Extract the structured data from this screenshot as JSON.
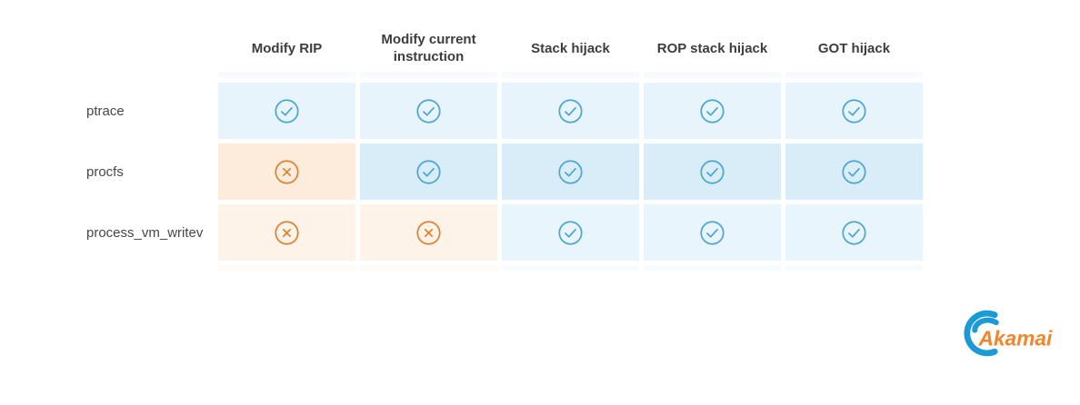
{
  "figure": {
    "columns": [
      "Modify RIP",
      "Modify current instruction",
      "Stack hijack",
      "ROP stack hijack",
      "GOT hijack"
    ],
    "rows": [
      {
        "label": "ptrace",
        "cells": [
          "check",
          "check",
          "check",
          "check",
          "check"
        ]
      },
      {
        "label": "procfs",
        "cells": [
          "cross",
          "check",
          "check",
          "check",
          "check"
        ]
      },
      {
        "label": "process_vm_writev",
        "cells": [
          "cross",
          "cross",
          "check",
          "check",
          "check"
        ]
      }
    ]
  },
  "chart_data": {
    "type": "table",
    "title": "",
    "columns": [
      "Modify RIP",
      "Modify current instruction",
      "Stack hijack",
      "ROP stack hijack",
      "GOT hijack"
    ],
    "rows": [
      {
        "label": "ptrace",
        "values": [
          true,
          true,
          true,
          true,
          true
        ]
      },
      {
        "label": "procfs",
        "values": [
          false,
          true,
          true,
          true,
          true
        ]
      },
      {
        "label": "process_vm_writev",
        "values": [
          false,
          false,
          true,
          true,
          true
        ]
      }
    ],
    "cell_icon_true": "check-circle",
    "cell_icon_false": "x-circle",
    "legend_position": "none",
    "grid": false
  },
  "colors": {
    "check_icon": "#4BA7D1",
    "cross_icon": "#E0812F",
    "row_yes_bg": [
      "#E8F4FB",
      "#D9EDF8",
      "#E9F5FC"
    ],
    "row_no_bg": [
      "#FDEDE0",
      "#FDECDC",
      "#FEF3E8"
    ],
    "header_text": "#3D3D3D",
    "label_text": "#474747",
    "logo_blue": "#1B9AD6",
    "logo_orange": "#F1862C"
  },
  "logo": {
    "brand": "Akamai"
  }
}
